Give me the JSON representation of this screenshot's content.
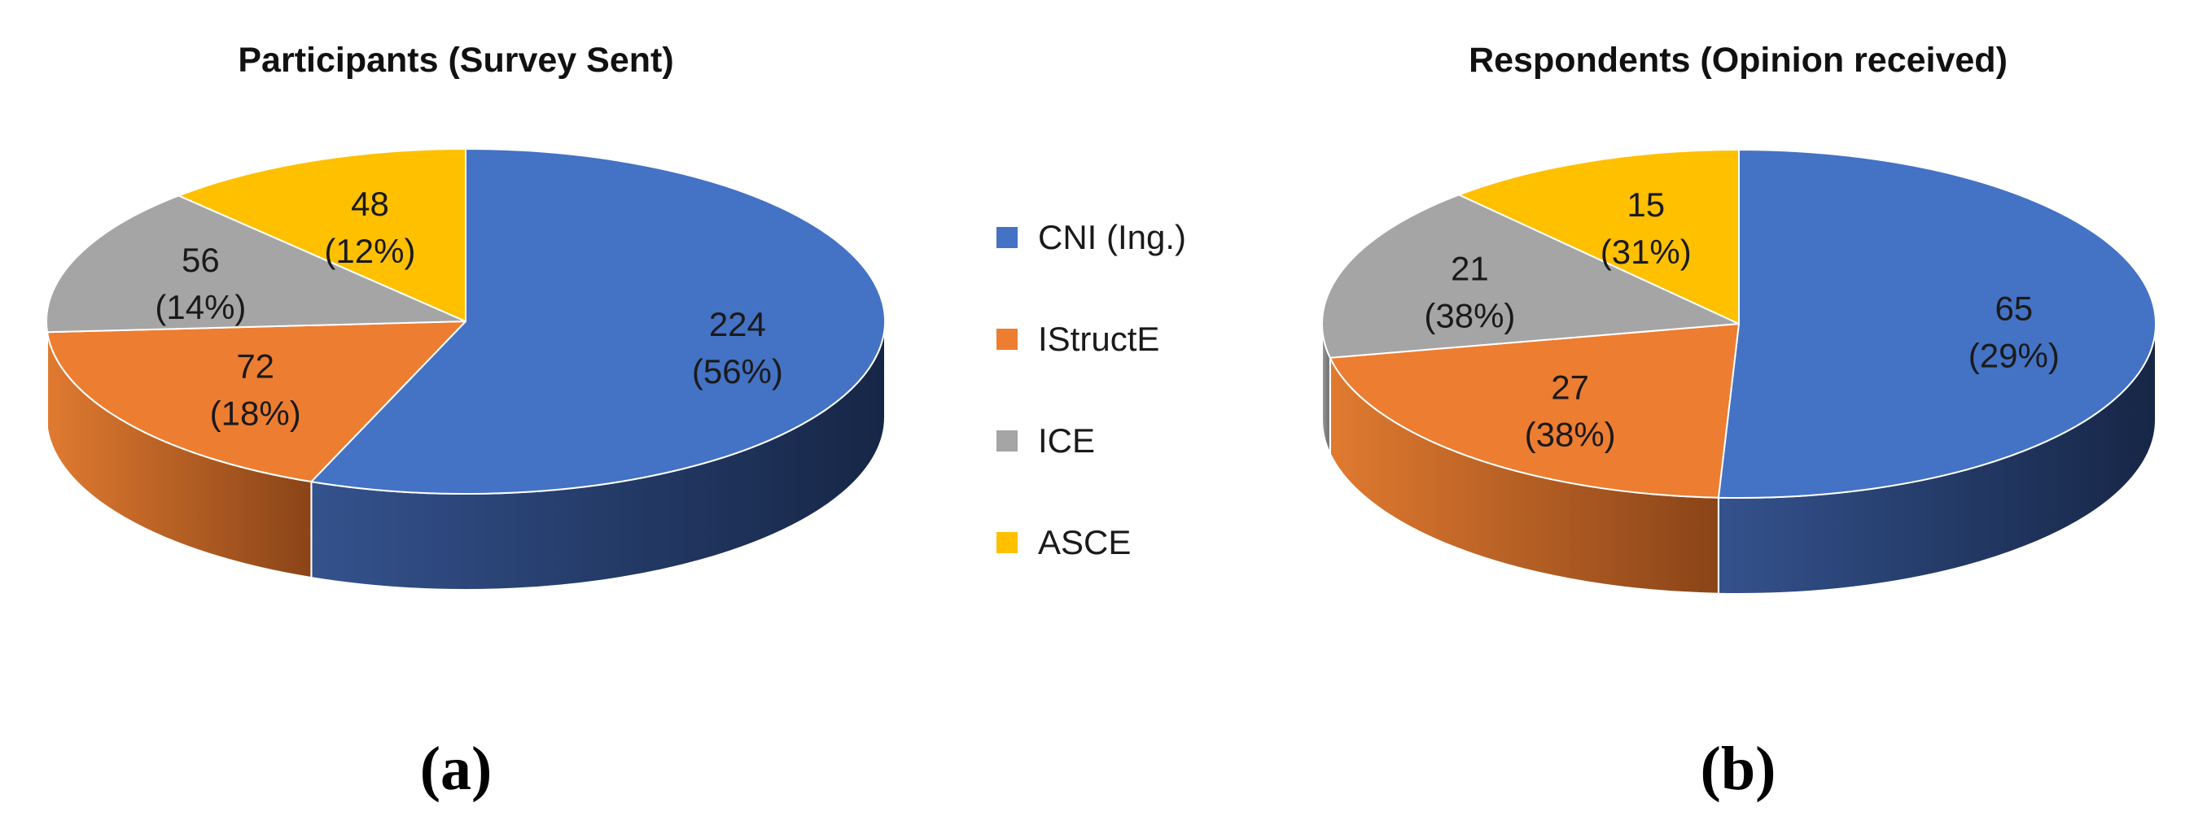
{
  "legend": [
    {
      "name": "CNI (Ing.)",
      "color": "#4472C4"
    },
    {
      "name": "IStructE",
      "color": "#ED7D31"
    },
    {
      "name": "ICE",
      "color": "#A5A5A5"
    },
    {
      "name": "ASCE",
      "color": "#FFC000"
    }
  ],
  "chart_data": [
    {
      "type": "pie",
      "title": "Participants (Survey Sent)",
      "panel_label": "(a)",
      "categories": [
        "CNI (Ing.)",
        "IStructE",
        "ICE",
        "ASCE"
      ],
      "values": [
        224,
        72,
        56,
        48
      ],
      "value_labels": [
        "224",
        "72",
        "56",
        "48"
      ],
      "percent_labels": [
        "(56%)",
        "(18%)",
        "(14%)",
        "(12%)"
      ],
      "colors": [
        "#4472C4",
        "#ED7D31",
        "#A5A5A5",
        "#FFC000"
      ],
      "style": "3d"
    },
    {
      "type": "pie",
      "title": "Respondents (Opinion received)",
      "panel_label": "(b)",
      "categories": [
        "CNI (Ing.)",
        "IStructE",
        "ICE",
        "ASCE"
      ],
      "values": [
        65,
        27,
        21,
        15
      ],
      "value_labels": [
        "65",
        "27",
        "21",
        "15"
      ],
      "percent_labels": [
        "(29%)",
        "(38%)",
        "(38%)",
        "(31%)"
      ],
      "colors": [
        "#4472C4",
        "#ED7D31",
        "#A5A5A5",
        "#FFC000"
      ],
      "style": "3d"
    }
  ]
}
